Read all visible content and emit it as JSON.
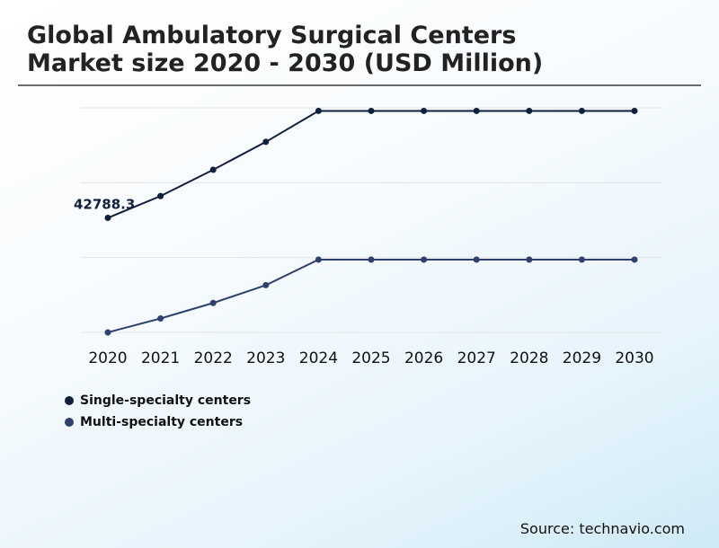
{
  "title_line1": "Global Ambulatory Surgical Centers",
  "title_line2": "Market size 2020 - 2030 (USD Million)",
  "source": "Source: technavio.com",
  "chart_data": {
    "type": "line",
    "categories": [
      "2020",
      "2021",
      "2022",
      "2023",
      "2024",
      "2025",
      "2026",
      "2027",
      "2028",
      "2029",
      "2030"
    ],
    "series": [
      {
        "name": "Single-specialty centers",
        "color": "#0f1f3d",
        "values": [
          42788.3,
          45600,
          49000,
          52600,
          56600,
          56600,
          56600,
          56600,
          56600,
          56600,
          56600
        ],
        "data_labels": [
          {
            "index": 0,
            "text": "42788.3"
          }
        ]
      },
      {
        "name": "Multi-specialty centers",
        "color": "#2e416e",
        "values": [
          28000,
          29800,
          31800,
          34100,
          37400,
          37400,
          37400,
          37400,
          37400,
          37400,
          37400
        ],
        "data_labels": []
      }
    ],
    "ylim": [
      28000,
      57000
    ],
    "grid": true,
    "legend_position": "bottom-left"
  }
}
